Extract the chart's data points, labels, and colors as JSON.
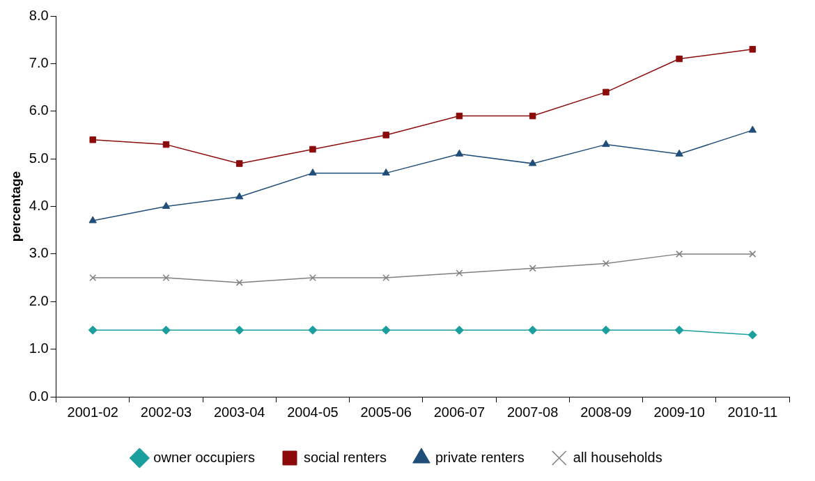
{
  "chart_data": {
    "type": "line",
    "ylabel": "percentage",
    "categories": [
      "2001-02",
      "2002-03",
      "2003-04",
      "2004-05",
      "2005-06",
      "2006-07",
      "2007-08",
      "2008-09",
      "2009-10",
      "2010-11"
    ],
    "series": [
      {
        "name": "owner occupiers",
        "color": "#1a9e9e",
        "marker": "diamond",
        "values": [
          1.4,
          1.4,
          1.4,
          1.4,
          1.4,
          1.4,
          1.4,
          1.4,
          1.4,
          1.3
        ]
      },
      {
        "name": "social renters",
        "color": "#8b0a0a",
        "marker": "square",
        "values": [
          5.4,
          5.3,
          4.9,
          5.2,
          5.5,
          5.9,
          5.9,
          6.4,
          7.1,
          7.3
        ]
      },
      {
        "name": "private renters",
        "color": "#1f4e79",
        "marker": "triangle",
        "values": [
          3.7,
          4.0,
          4.2,
          4.7,
          4.7,
          5.1,
          4.9,
          5.3,
          5.1,
          5.6
        ]
      },
      {
        "name": "all households",
        "color": "#7f7f7f",
        "marker": "cross",
        "values": [
          2.5,
          2.5,
          2.4,
          2.5,
          2.5,
          2.6,
          2.7,
          2.8,
          3.0,
          3.0
        ]
      }
    ],
    "ylim": [
      0,
      8
    ],
    "yticks": [
      {
        "value": 0,
        "label": "0.0"
      },
      {
        "value": 1,
        "label": "1.0"
      },
      {
        "value": 2,
        "label": "2.0"
      },
      {
        "value": 3,
        "label": "3.0"
      },
      {
        "value": 4,
        "label": "4.0"
      },
      {
        "value": 5,
        "label": "5.0"
      },
      {
        "value": 6,
        "label": "6.0"
      },
      {
        "value": 7,
        "label": "7.0"
      },
      {
        "value": 8,
        "label": "8.0"
      }
    ],
    "grid": false,
    "legend": "bottom",
    "line_style": "solid"
  }
}
